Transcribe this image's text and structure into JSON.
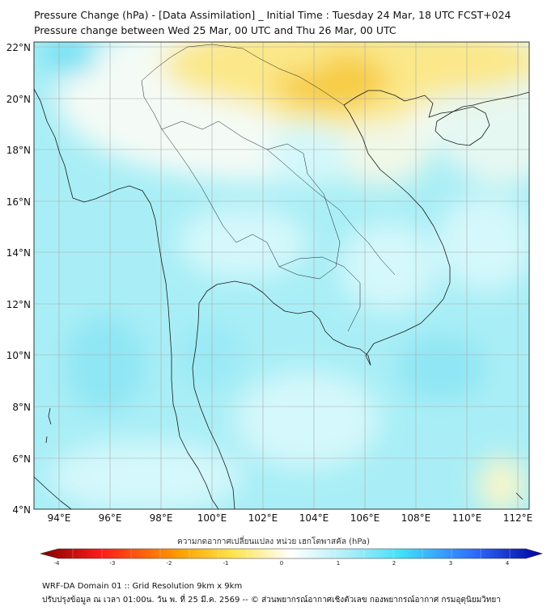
{
  "title_line1": "Pressure Change (hPa) - [Data Assimilation] _ Initial Time : Tuesday 24 Mar, 18 UTC FCST+024",
  "title_line2": "Pressure change between Wed 25 Mar, 00 UTC and Thu 26 Mar, 00 UTC",
  "axes": {
    "lat_labels": [
      "22°N",
      "20°N",
      "18°N",
      "16°N",
      "14°N",
      "12°N",
      "10°N",
      "8°N",
      "6°N",
      "4°N"
    ],
    "lon_labels": [
      "94°E",
      "96°E",
      "98°E",
      "100°E",
      "102°E",
      "104°E",
      "106°E",
      "108°E",
      "110°E",
      "112°E"
    ]
  },
  "colorbar": {
    "label": "ความกดอากาศเปลี่ยนแปลง หน่วย เฮกโตพาสคัล (hPa)",
    "ticks": [
      "-4",
      "-3",
      "-2",
      "-1",
      "0",
      "1",
      "2",
      "3",
      "4"
    ],
    "min": -4,
    "max": 4,
    "colors": {
      "neg_deep": "#800000",
      "neg_red": "#ff1a1a",
      "neg_orange": "#ffa000",
      "neg_yellow": "#ffe24a",
      "zero": "#ffffff",
      "pos_cyan": "#40e0f8",
      "pos_blue": "#3070ff",
      "pos_deep": "#0000a0"
    }
  },
  "footer": {
    "line1": "WRF-DA Domain 01 :: Grid Resolution 9km x 9km",
    "line2": "ปรับปรุงข้อมูล ณ เวลา 01:00น. วัน พ. ที่ 25 มี.ค. 2569 -- © ส่วนพยากรณ์อากาศเชิงตัวเลข กองพยากรณ์อากาศ กรมอุตุนิยมวิทยา"
  },
  "map_colors": {
    "ocean_cyan": "#a9eef6",
    "light_cyan": "#d4f8fb",
    "pale": "#f4fbf6",
    "yellow": "#fbe88a",
    "orange": "#f7cc45",
    "coast": "#1a1a1a",
    "grid": "#aaaaaa"
  }
}
